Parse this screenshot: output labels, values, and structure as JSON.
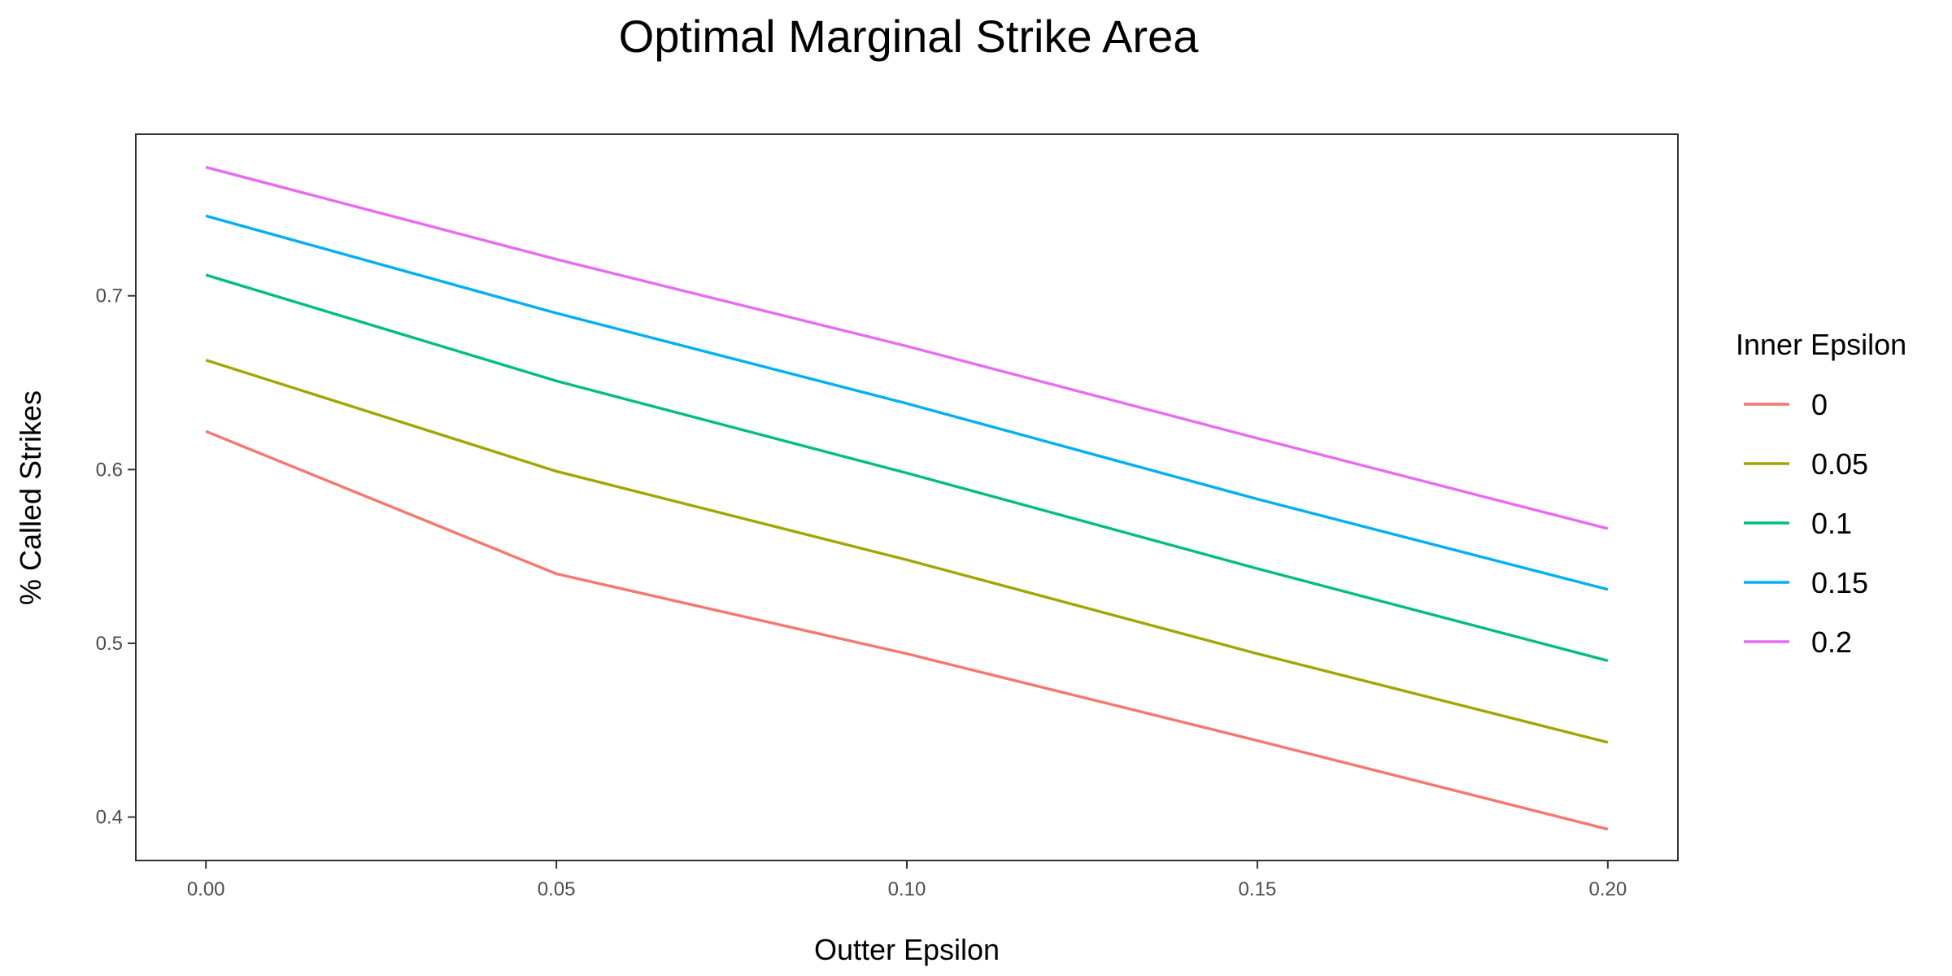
{
  "chart_data": {
    "type": "line",
    "title": "Optimal Marginal Strike Area",
    "xlabel": "Outter Epsilon",
    "ylabel": "% Called Strikes",
    "x": [
      0.0,
      0.05,
      0.1,
      0.15,
      0.2
    ],
    "x_tick_labels": [
      "0.00",
      "0.05",
      "0.10",
      "0.15",
      "0.20"
    ],
    "y_ticks": [
      0.4,
      0.5,
      0.6,
      0.7
    ],
    "y_tick_labels": [
      "0.4",
      "0.5",
      "0.6",
      "0.7"
    ],
    "xlim": [
      -0.01,
      0.21
    ],
    "ylim": [
      0.375,
      0.793
    ],
    "grid": false,
    "legend": {
      "title": "Inner Epsilon",
      "position": "right"
    },
    "series": [
      {
        "name": "0",
        "color": "#F8766D",
        "values": [
          0.622,
          0.54,
          0.494,
          0.444,
          0.393
        ]
      },
      {
        "name": "0.05",
        "color": "#A3A500",
        "values": [
          0.663,
          0.599,
          0.548,
          0.494,
          0.443
        ]
      },
      {
        "name": "0.1",
        "color": "#00BF7D",
        "values": [
          0.712,
          0.651,
          0.598,
          0.543,
          0.49
        ]
      },
      {
        "name": "0.15",
        "color": "#00B0F6",
        "values": [
          0.746,
          0.69,
          0.638,
          0.583,
          0.531
        ]
      },
      {
        "name": "0.2",
        "color": "#E76BF3",
        "values": [
          0.774,
          0.721,
          0.671,
          0.618,
          0.566
        ]
      }
    ]
  }
}
